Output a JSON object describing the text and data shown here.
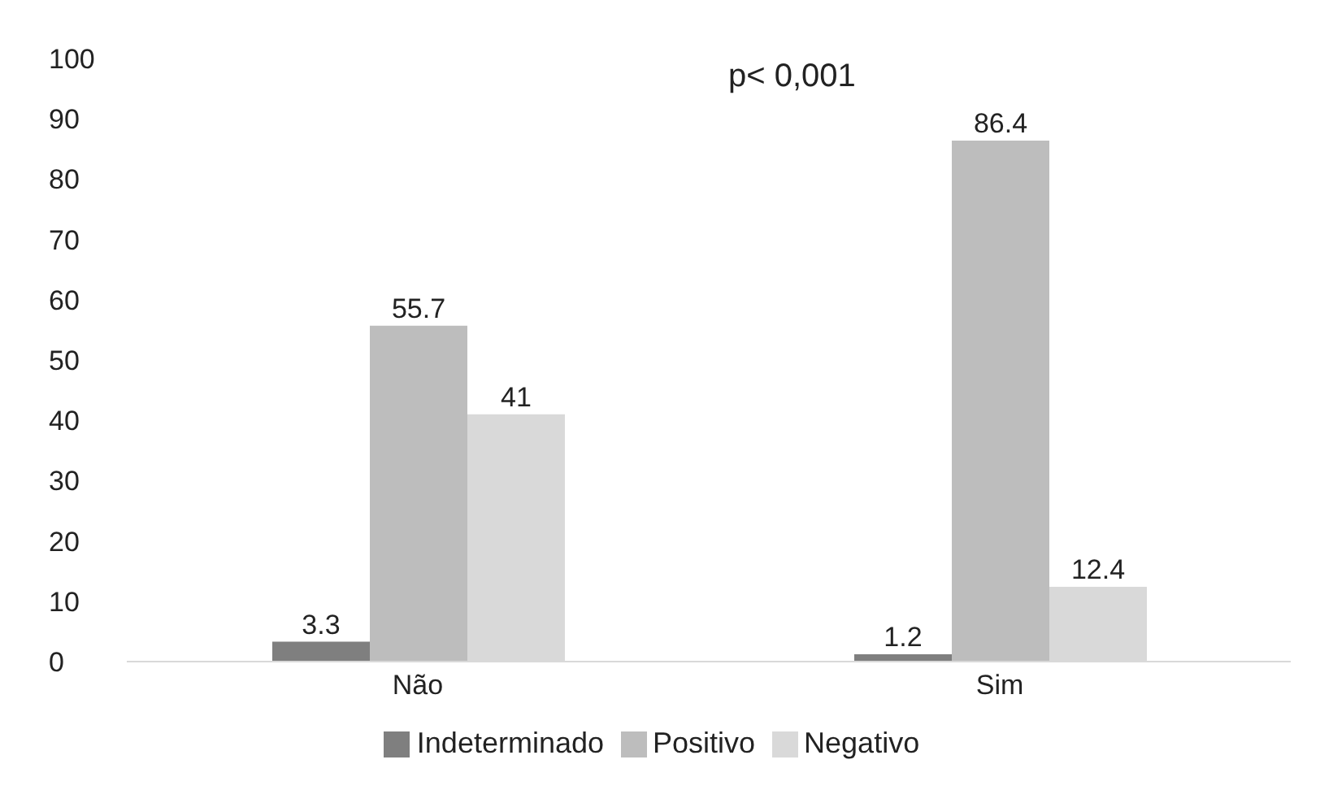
{
  "chart_data": {
    "type": "bar",
    "categories": [
      "Não",
      "Sim"
    ],
    "series": [
      {
        "name": "Indeterminado",
        "color": "#7f7f7f",
        "values": [
          3.3,
          1.2
        ]
      },
      {
        "name": "Positivo",
        "color": "#bdbdbd",
        "values": [
          55.7,
          86.4
        ]
      },
      {
        "name": "Negativo",
        "color": "#d9d9d9",
        "values": [
          41,
          12.4
        ]
      }
    ],
    "ylim": [
      0,
      100
    ],
    "yticks": [
      0,
      10,
      20,
      30,
      40,
      50,
      60,
      70,
      80,
      90,
      100
    ],
    "grid": false,
    "legend": "bottom",
    "data_labels": true,
    "annotations": [
      "p< 0,001"
    ]
  }
}
